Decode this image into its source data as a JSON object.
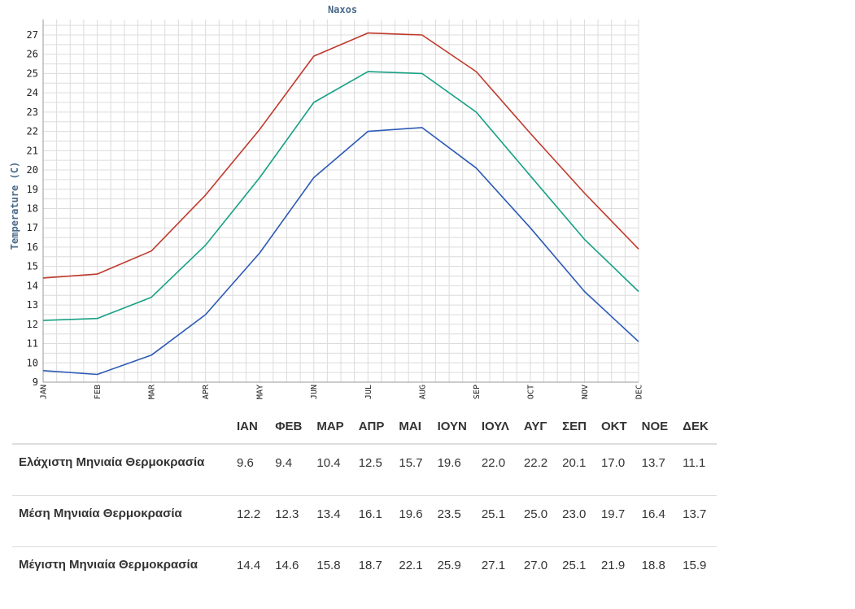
{
  "chart_data": {
    "type": "line",
    "title": "Naxos",
    "ylabel": "Temperature (C)",
    "xlabel": "",
    "categories": [
      "JAN",
      "FEB",
      "MAR",
      "APR",
      "MAY",
      "JUN",
      "JUL",
      "AUG",
      "SEP",
      "OCT",
      "NOV",
      "DEC"
    ],
    "ylim": [
      9,
      27.8
    ],
    "yticks": [
      "9",
      "10",
      "11",
      "12",
      "13",
      "14",
      "15",
      "16",
      "17",
      "18",
      "19",
      "20",
      "21",
      "22",
      "23",
      "24",
      "25",
      "26",
      "27"
    ],
    "grid": true,
    "series": [
      {
        "color": "#c0392b",
        "values": [
          14.4,
          14.6,
          15.8,
          18.7,
          22.1,
          25.9,
          27.1,
          27.0,
          25.1,
          21.9,
          18.8,
          15.9
        ]
      },
      {
        "color": "#16a085",
        "values": [
          12.2,
          12.3,
          13.4,
          16.1,
          19.6,
          23.5,
          25.1,
          25.0,
          23.0,
          19.7,
          16.4,
          13.7
        ]
      },
      {
        "color": "#2c5ab5",
        "values": [
          9.6,
          9.4,
          10.4,
          12.5,
          15.7,
          19.6,
          22.0,
          22.2,
          20.1,
          17.0,
          13.7,
          11.1
        ]
      }
    ]
  },
  "table": {
    "months": [
      "ΙΑΝ",
      "ΦΕΒ",
      "ΜΑΡ",
      "ΑΠΡ",
      "ΜΑΙ",
      "ΙΟΥΝ",
      "ΙΟΥΛ",
      "ΑΥΓ",
      "ΣΕΠ",
      "ΟΚΤ",
      "ΝΟΕ",
      "ΔΕΚ"
    ],
    "rows": [
      {
        "label": "Ελάχιστη Μηνιαία Θερμοκρασία",
        "values": [
          "9.6",
          "9.4",
          "10.4",
          "12.5",
          "15.7",
          "19.6",
          "22.0",
          "22.2",
          "20.1",
          "17.0",
          "13.7",
          "11.1"
        ]
      },
      {
        "label": "Μέση Μηνιαία Θερμοκρασία",
        "values": [
          "12.2",
          "12.3",
          "13.4",
          "16.1",
          "19.6",
          "23.5",
          "25.1",
          "25.0",
          "23.0",
          "19.7",
          "16.4",
          "13.7"
        ]
      },
      {
        "label": "Μέγιστη Μηνιαία Θερμοκρασία",
        "values": [
          "14.4",
          "14.6",
          "15.8",
          "18.7",
          "22.1",
          "25.9",
          "27.1",
          "27.0",
          "25.1",
          "21.9",
          "18.8",
          "15.9"
        ]
      }
    ]
  }
}
